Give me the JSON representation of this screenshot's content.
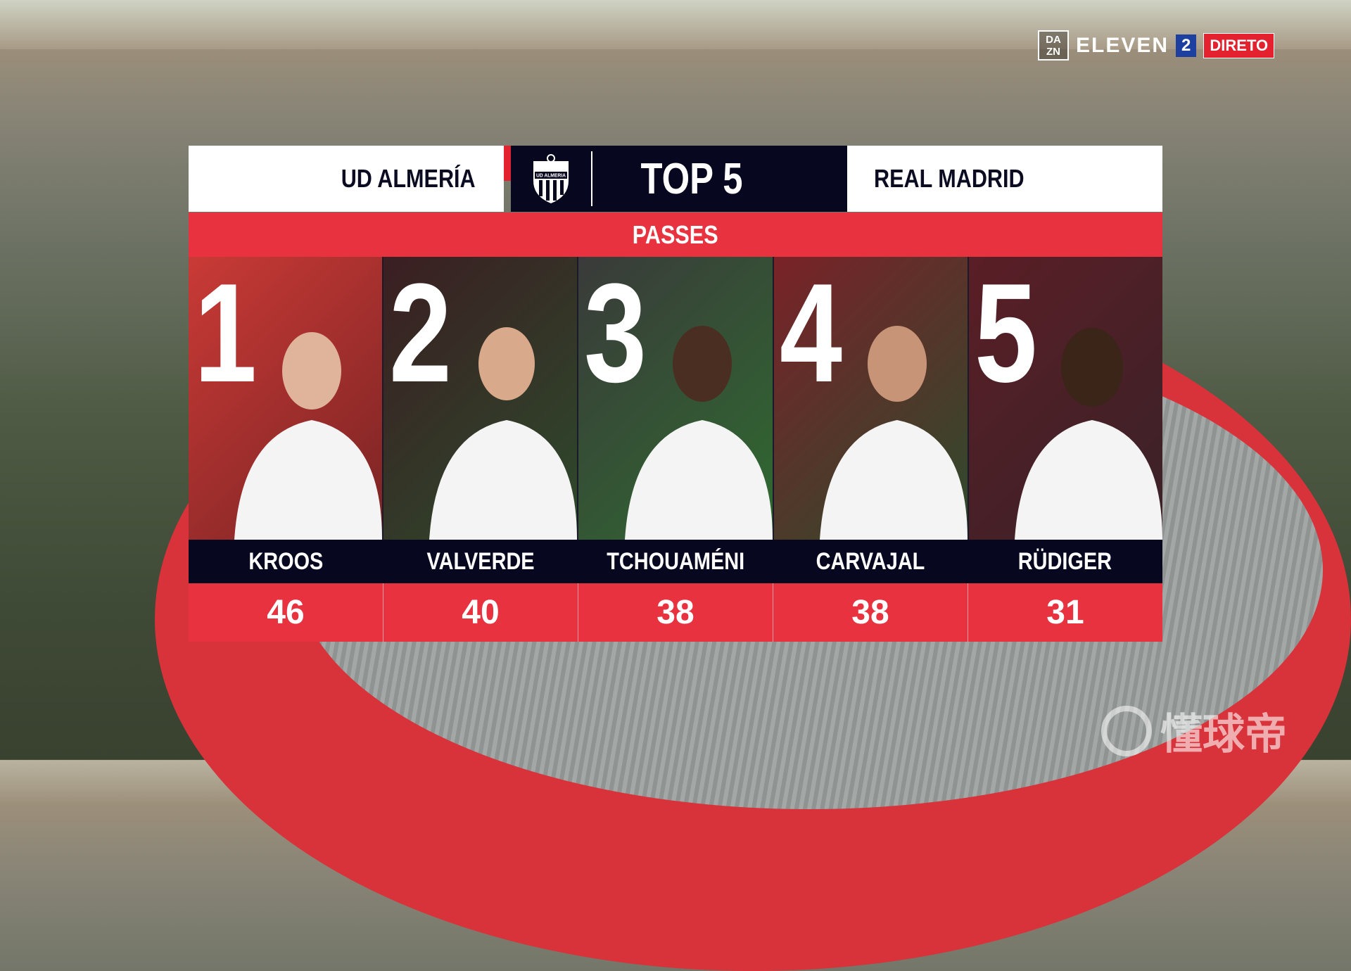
{
  "broadcaster": {
    "dazn": "DA ZN",
    "channel": "ELEVEN",
    "channel_number": "2",
    "live_label": "DIRETO"
  },
  "header": {
    "home_team": "UD ALMERÍA",
    "title": "TOP 5",
    "away_team": "REAL MADRID",
    "home_crest_text": "UD ALMERIA"
  },
  "stat_label": "PASSES",
  "players": [
    {
      "rank": "1",
      "name": "KROOS",
      "value": "46"
    },
    {
      "rank": "2",
      "name": "VALVERDE",
      "value": "40"
    },
    {
      "rank": "3",
      "name": "TCHOUAMÉNI",
      "value": "38"
    },
    {
      "rank": "4",
      "name": "CARVAJAL",
      "value": "38"
    },
    {
      "rank": "5",
      "name": "RÜDIGER",
      "value": "31"
    }
  ],
  "watermark": "懂球帝",
  "colors": {
    "accent_red": "#e8323f",
    "navy": "#07081f",
    "white": "#ffffff"
  }
}
